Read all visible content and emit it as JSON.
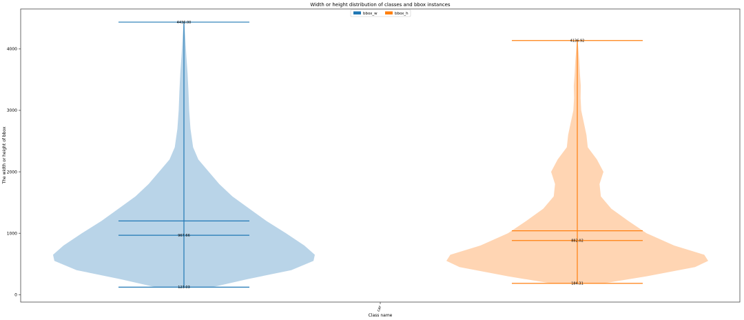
{
  "chart_data": {
    "type": "violin",
    "title": "Width or height distribution of classes and bbox instances",
    "xlabel": "Class name",
    "ylabel": "The width or height of bbox",
    "categories": [
      "car"
    ],
    "ylim": [
      -120,
      4650
    ],
    "yticks": [
      0,
      1000,
      2000,
      3000,
      4000
    ],
    "legend_position": "top-center",
    "grid": false,
    "series": [
      {
        "name": "bbox_w",
        "color": "#1f77b4",
        "fill": "#b9d4e8",
        "min": 123.03,
        "median": 967.66,
        "mean": 1200,
        "max": 4436.0,
        "min_label": "123.03",
        "median_label": "967.66",
        "max_label": "4436.00",
        "density": [
          [
            123,
            0.22
          ],
          [
            250,
            0.48
          ],
          [
            400,
            0.82
          ],
          [
            550,
            0.99
          ],
          [
            650,
            1.0
          ],
          [
            800,
            0.92
          ],
          [
            1000,
            0.78
          ],
          [
            1200,
            0.63
          ],
          [
            1400,
            0.5
          ],
          [
            1600,
            0.37
          ],
          [
            1800,
            0.27
          ],
          [
            2000,
            0.19
          ],
          [
            2200,
            0.11
          ],
          [
            2400,
            0.07
          ],
          [
            2700,
            0.05
          ],
          [
            3000,
            0.04
          ],
          [
            3300,
            0.035
          ],
          [
            3600,
            0.028
          ],
          [
            3900,
            0.018
          ],
          [
            4200,
            0.01
          ],
          [
            4436,
            0.002
          ]
        ]
      },
      {
        "name": "bbox_h",
        "color": "#ff7f0e",
        "fill": "#ffd5b3",
        "min": 184.31,
        "median": 882.02,
        "mean": 1040,
        "max": 4136.92,
        "min_label": "184.31",
        "median_label": "882.02",
        "max_label": "4136.92",
        "density": [
          [
            184,
            0.2
          ],
          [
            300,
            0.53
          ],
          [
            450,
            0.9
          ],
          [
            550,
            1.0
          ],
          [
            650,
            0.97
          ],
          [
            800,
            0.74
          ],
          [
            1000,
            0.53
          ],
          [
            1200,
            0.39
          ],
          [
            1400,
            0.26
          ],
          [
            1600,
            0.18
          ],
          [
            1800,
            0.17
          ],
          [
            2000,
            0.2
          ],
          [
            2200,
            0.15
          ],
          [
            2400,
            0.08
          ],
          [
            2600,
            0.07
          ],
          [
            2800,
            0.05
          ],
          [
            3000,
            0.03
          ],
          [
            3200,
            0.025
          ],
          [
            3400,
            0.027
          ],
          [
            3600,
            0.02
          ],
          [
            3800,
            0.015
          ],
          [
            4000,
            0.008
          ],
          [
            4137,
            0.002
          ]
        ]
      }
    ]
  }
}
